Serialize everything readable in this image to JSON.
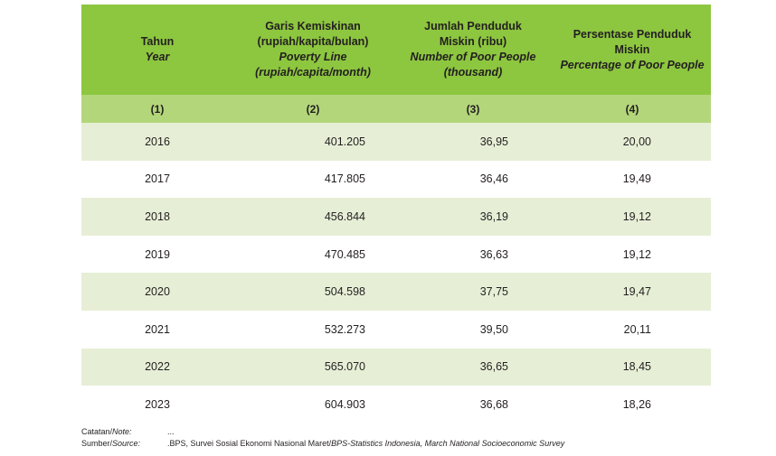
{
  "headers": [
    {
      "id": "Tahun",
      "en": "Year"
    },
    {
      "id": "Garis Kemiskinan\n(rupiah/kapita/bulan)",
      "en": "Poverty Line\n(rupiah/capita/month)"
    },
    {
      "id": "Jumlah Penduduk\nMiskin (ribu)",
      "en": "Number of Poor People\n(thousand)"
    },
    {
      "id": "Persentase Penduduk\nMiskin",
      "en": "Percentage of Poor People"
    }
  ],
  "column_numbers": [
    "(1)",
    "(2)",
    "(3)",
    "(4)"
  ],
  "rows": [
    {
      "year": "2016",
      "poverty_line": "401.205",
      "poor_people": "36,95",
      "percentage": "20,00"
    },
    {
      "year": "2017",
      "poverty_line": "417.805",
      "poor_people": "36,46",
      "percentage": "19,49"
    },
    {
      "year": "2018",
      "poverty_line": "456.844",
      "poor_people": "36,19",
      "percentage": "19,12"
    },
    {
      "year": "2019",
      "poverty_line": "470.485",
      "poor_people": "36,63",
      "percentage": "19,12"
    },
    {
      "year": "2020",
      "poverty_line": "504.598",
      "poor_people": "37,75",
      "percentage": "19,47"
    },
    {
      "year": "2021",
      "poverty_line": "532.273",
      "poor_people": "39,50",
      "percentage": "20,11"
    },
    {
      "year": "2022",
      "poverty_line": "565.070",
      "poor_people": "36,65",
      "percentage": "18,45"
    },
    {
      "year": "2023",
      "poverty_line": "604.903",
      "poor_people": "36,68",
      "percentage": "18,26"
    }
  ],
  "notes": {
    "note_label_id": "Catatan/",
    "note_label_en": "Note:",
    "note_value": "...",
    "source_label_id": "Sumber/",
    "source_label_en": "Source:",
    "source_value_id": ".BPS, Survei Sosial Ekonomi Nasional Maret/",
    "source_value_en": "BPS-Statistics Indonesia, March National Socioeconomic Survey"
  },
  "colors": {
    "header_bg": "#8dc63f",
    "number_row_bg": "#b3d67a",
    "stripe_bg": "#e6efd6"
  }
}
